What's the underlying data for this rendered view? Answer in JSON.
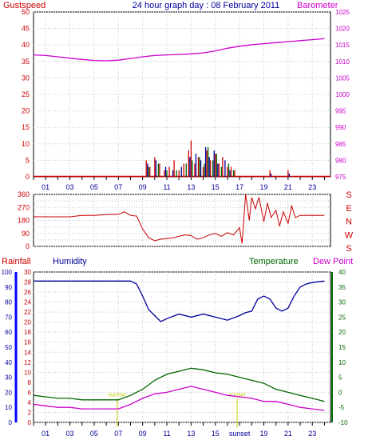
{
  "colors": {
    "red": "#cc0000",
    "magenta": "#cc00cc",
    "blue": "#000099",
    "green": "#006600",
    "grid": "#c8c8c8",
    "axis": "#000000",
    "bright_blue": "#0000ff",
    "yellow": "#cccc00"
  },
  "chart_data": [
    {
      "type": "line",
      "title": "24 hour graph day : 08 February 2011",
      "left_label": "Gustspeed",
      "right_label": "Barometer",
      "x_ticks": [
        "01",
        "03",
        "05",
        "07",
        "09",
        "11",
        "13",
        "15",
        "17",
        "19",
        "21",
        "23"
      ],
      "xlim": [
        0,
        24.5
      ],
      "ylim_left": [
        0,
        50
      ],
      "ylim_right": [
        975,
        1025
      ],
      "y_ticks_left": [
        "0",
        "5",
        "10",
        "15",
        "20",
        "25",
        "30",
        "35",
        "40",
        "45",
        "50"
      ],
      "y_ticks_right": [
        "975",
        "980",
        "985",
        "990",
        "995",
        "1000",
        "1005",
        "1010",
        "1015",
        "1020",
        "1025"
      ],
      "series": [
        {
          "name": "Barometer",
          "axis": "right",
          "color": "magenta",
          "x": [
            0,
            1,
            2,
            3,
            4,
            5,
            6,
            7,
            8,
            9,
            10,
            11,
            12,
            13,
            14,
            15,
            16,
            17,
            18,
            19,
            20,
            21,
            22,
            23,
            24
          ],
          "y": [
            1012,
            1011.8,
            1011.4,
            1011,
            1010.6,
            1010.3,
            1010.2,
            1010.4,
            1010.9,
            1011.4,
            1011.8,
            1012,
            1012.1,
            1012.3,
            1012.6,
            1013.2,
            1014,
            1014.6,
            1015.1,
            1015.4,
            1015.7,
            1016,
            1016.3,
            1016.6,
            1016.9
          ]
        },
        {
          "name": "Gustspeed",
          "axis": "left",
          "color": "red",
          "style": "bars",
          "x": [
            9.3,
            9.6,
            10.0,
            10.4,
            10.8,
            11.2,
            11.6,
            12.0,
            12.4,
            12.8,
            13.0,
            13.3,
            13.6,
            14.0,
            14.3,
            14.6,
            15.0,
            15.3,
            15.6,
            16.0,
            16.3,
            16.6,
            19.5,
            21.0
          ],
          "y": [
            5,
            3,
            6,
            4,
            2,
            3,
            5,
            2,
            4,
            8,
            11,
            4,
            6,
            3,
            8,
            5,
            7,
            4,
            6,
            3,
            3,
            2,
            2,
            2
          ]
        },
        {
          "name": "Windspeed",
          "axis": "left",
          "color": "blue",
          "style": "bars",
          "x": [
            9.4,
            10.1,
            10.9,
            11.5,
            12.2,
            12.9,
            13.4,
            13.8,
            14.2,
            14.5,
            14.9,
            15.2,
            15.8,
            16.2,
            19.6,
            21.1
          ],
          "y": [
            4,
            5,
            3,
            2,
            3,
            6,
            7,
            5,
            9,
            6,
            8,
            4,
            5,
            2,
            1,
            1
          ]
        },
        {
          "name": "Windavg",
          "axis": "left",
          "color": "green",
          "style": "bars",
          "x": [
            9.5,
            10.3,
            11.0,
            11.8,
            12.6,
            13.1,
            13.7,
            14.1,
            14.4,
            14.8,
            15.1,
            15.5,
            16.1,
            16.5
          ],
          "y": [
            3,
            4,
            2,
            2,
            4,
            5,
            6,
            4,
            9,
            5,
            7,
            3,
            4,
            2
          ]
        }
      ]
    },
    {
      "type": "line",
      "title": "",
      "right_label_letters": [
        "S",
        "E",
        "N",
        "W",
        "S"
      ],
      "x_ticks": [
        "01",
        "03",
        "05",
        "07",
        "09",
        "11",
        "13",
        "15",
        "17",
        "19",
        "21",
        "23"
      ],
      "xlim": [
        0,
        24.5
      ],
      "ylim": [
        0,
        360
      ],
      "y_ticks": [
        "0",
        "90",
        "180",
        "270",
        "360"
      ],
      "y_ticks_midlines": [
        45,
        135,
        225,
        315
      ],
      "series": [
        {
          "name": "Wind direction",
          "color": "red",
          "x": [
            0,
            1,
            2,
            3,
            4,
            5,
            6,
            7,
            7.5,
            8,
            8.5,
            9,
            9.5,
            10,
            10.5,
            11,
            11.5,
            12,
            12.5,
            13,
            13.5,
            14,
            14.5,
            15,
            15.5,
            16,
            16.5,
            17,
            17.2,
            17.5,
            17.8,
            18,
            18.3,
            18.6,
            19,
            19.3,
            19.6,
            20,
            20.3,
            20.6,
            21,
            21.3,
            21.6,
            22,
            23,
            24
          ],
          "y": [
            205,
            205,
            205,
            205,
            215,
            215,
            220,
            222,
            240,
            215,
            210,
            120,
            60,
            40,
            50,
            55,
            60,
            70,
            80,
            75,
            50,
            60,
            80,
            90,
            70,
            95,
            80,
            130,
            20,
            360,
            180,
            340,
            260,
            340,
            170,
            300,
            200,
            250,
            140,
            240,
            160,
            280,
            200,
            215,
            215,
            215
          ]
        }
      ]
    },
    {
      "type": "line",
      "left_label": "Rainfall",
      "left_label2": "Humidity",
      "right_label": "Temperature",
      "right_label2": "Dew Point",
      "x_ticks": [
        "01",
        "03",
        "05",
        "07",
        "09",
        "11",
        "13",
        "15",
        "sunset",
        "19",
        "21",
        "23"
      ],
      "xlim": [
        0,
        24.5
      ],
      "ylim_humidity": [
        0,
        100
      ],
      "ylim_rain": [
        0,
        30
      ],
      "ylim_temp": [
        -10,
        40
      ],
      "y_ticks_humidity": [
        "0",
        "10",
        "20",
        "30",
        "40",
        "50",
        "60",
        "70",
        "80",
        "90",
        "100"
      ],
      "y_ticks_rain": [
        "0",
        "2",
        "4",
        "6",
        "8",
        "10",
        "12",
        "14",
        "16",
        "18",
        "20",
        "22",
        "24",
        "26",
        "28",
        "30"
      ],
      "y_ticks_temp": [
        "-10",
        "-5",
        "0",
        "5",
        "10",
        "15",
        "20",
        "25",
        "30",
        "35",
        "40"
      ],
      "sun_markers": [
        {
          "x": 6.9,
          "label": "sunrise"
        },
        {
          "x": 16.8,
          "label": "sunset"
        }
      ],
      "series": [
        {
          "name": "Humidity",
          "axis": "humidity",
          "color": "blue",
          "x": [
            0,
            1,
            2,
            3,
            4,
            5,
            6,
            7,
            8,
            8.5,
            9,
            9.5,
            10,
            10.5,
            11,
            12,
            13,
            14,
            15,
            16,
            17,
            17.5,
            18,
            18.5,
            19,
            19.5,
            20,
            20.5,
            21,
            21.5,
            22,
            22.5,
            23,
            24
          ],
          "y": [
            94,
            94,
            94,
            94,
            94,
            94,
            94,
            94,
            94,
            92,
            84,
            75,
            71,
            67,
            69,
            72,
            70,
            72,
            70,
            68,
            71,
            73,
            74,
            82,
            84,
            82,
            76,
            74,
            76,
            84,
            90,
            92,
            93,
            94
          ]
        },
        {
          "name": "Temperature",
          "axis": "temp",
          "color": "green",
          "x": [
            0,
            1,
            2,
            3,
            4,
            5,
            6,
            7,
            8,
            9,
            10,
            11,
            12,
            13,
            14,
            15,
            16,
            17,
            18,
            19,
            20,
            21,
            22,
            23,
            24
          ],
          "y": [
            -1,
            -1.5,
            -2,
            -2,
            -2.5,
            -2.5,
            -2.5,
            -2.5,
            -1,
            1,
            4,
            6,
            7,
            8,
            7.5,
            6.5,
            6,
            5,
            4,
            3,
            1,
            0,
            -1,
            -2,
            -3
          ]
        },
        {
          "name": "Dew Point",
          "axis": "temp",
          "color": "magenta",
          "x": [
            0,
            1,
            2,
            3,
            4,
            5,
            6,
            7,
            8,
            9,
            10,
            11,
            12,
            13,
            14,
            15,
            16,
            17,
            18,
            19,
            20,
            21,
            22,
            23,
            24
          ],
          "y": [
            -4,
            -4.5,
            -5,
            -5,
            -5.5,
            -5.5,
            -5.5,
            -5.5,
            -4,
            -2,
            -0.5,
            0,
            1,
            2,
            1,
            0,
            -1,
            -1.5,
            -2,
            -3,
            -3,
            -4,
            -5,
            -5.5,
            -6
          ]
        }
      ]
    }
  ]
}
